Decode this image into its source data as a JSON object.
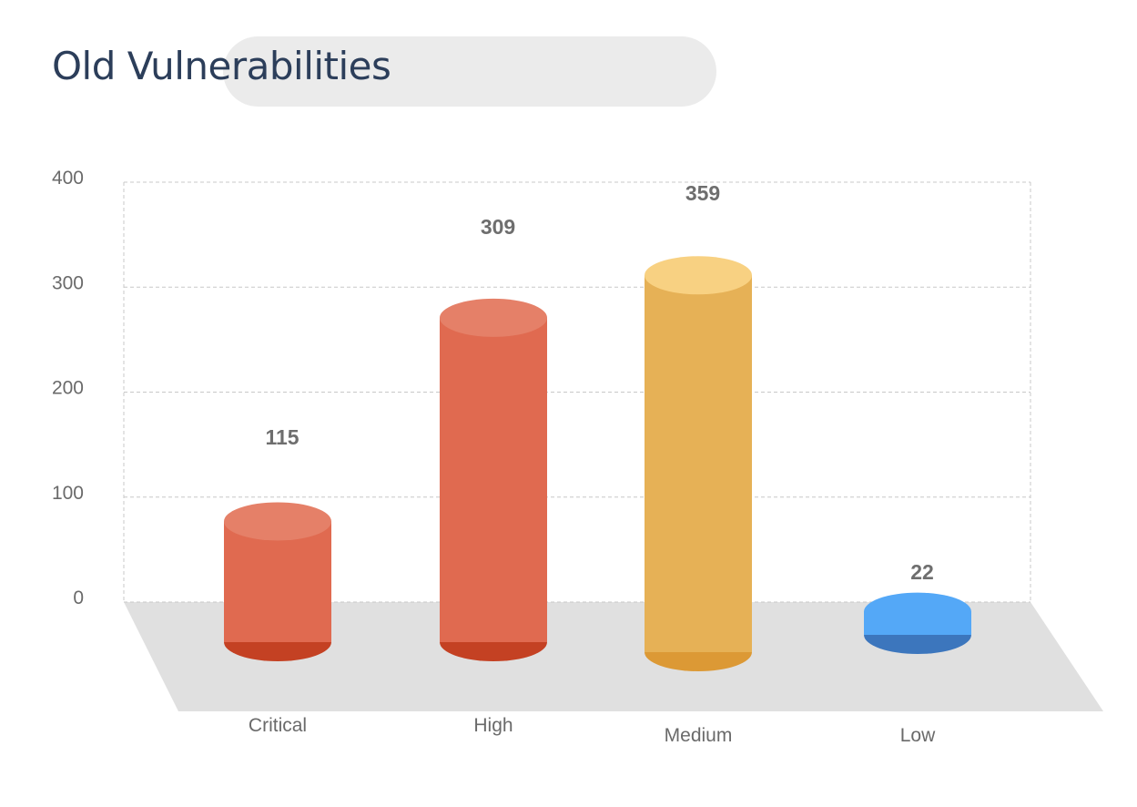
{
  "title": "Old Vulnerabilities",
  "chart_data": {
    "type": "bar",
    "style": "3d-cylinder",
    "title": "Old Vulnerabilities",
    "categories": [
      "Critical",
      "High",
      "Medium",
      "Low"
    ],
    "values": [
      115,
      309,
      359,
      22
    ],
    "data_labels": [
      "115",
      "309",
      "359",
      "22"
    ],
    "colors": [
      "#e06a50",
      "#e06a50",
      "#e6b156",
      "#54a8f7"
    ],
    "ylim": [
      0,
      400
    ],
    "yticks": [
      0,
      100,
      200,
      300,
      400
    ],
    "ytick_labels": [
      "0",
      "100",
      "200",
      "300",
      "400"
    ],
    "grid": true,
    "legend": "none"
  }
}
